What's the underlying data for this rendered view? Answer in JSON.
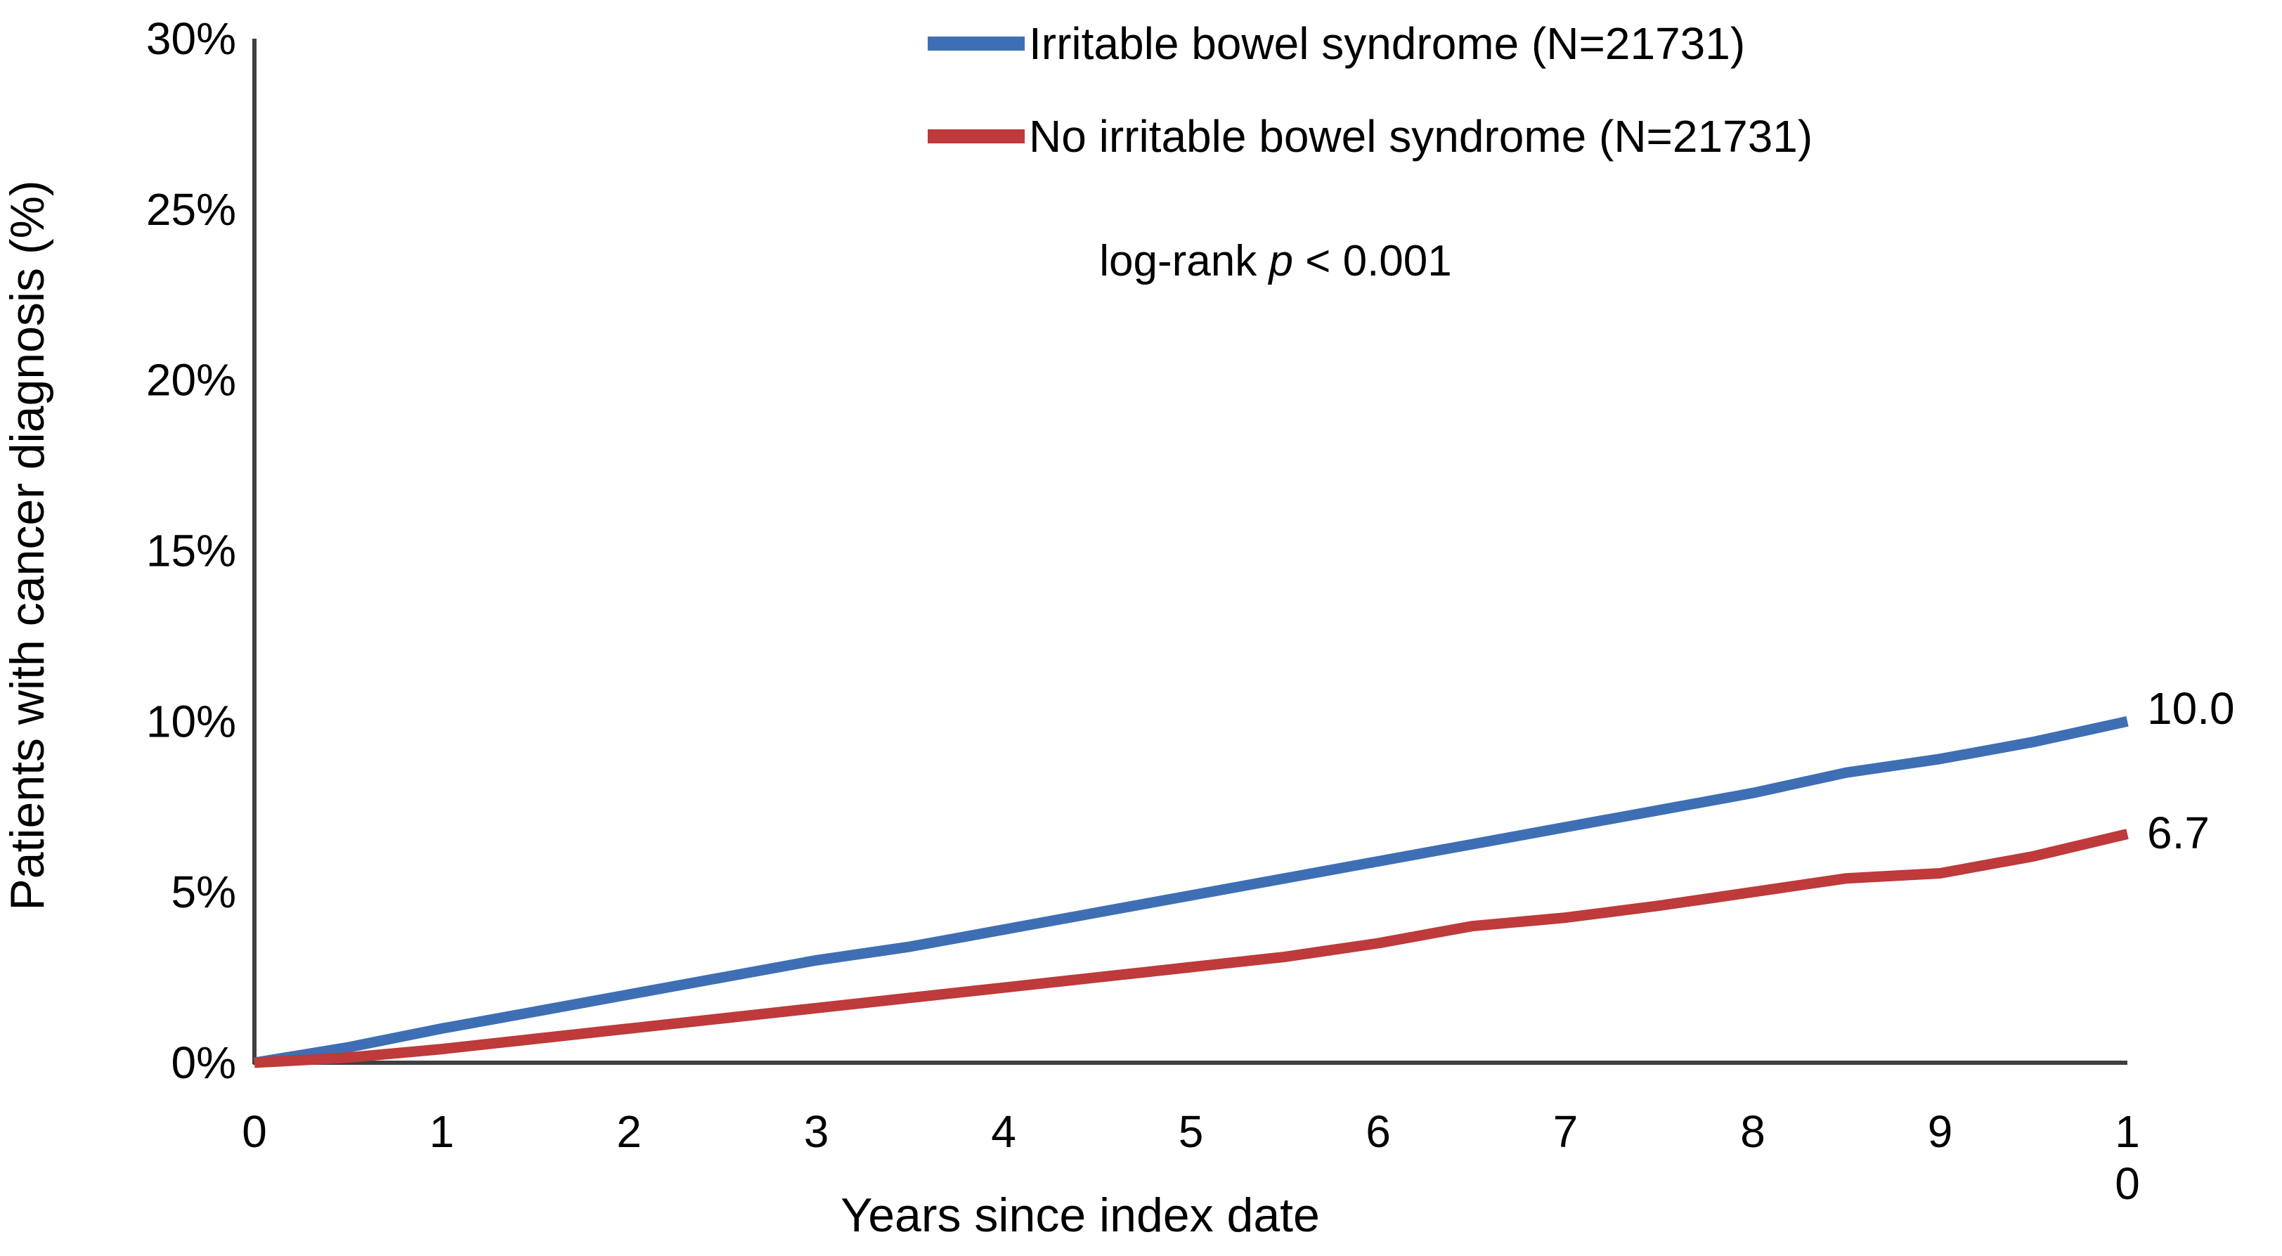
{
  "chart_data": {
    "type": "line",
    "title": "",
    "xlabel": "Years since index date",
    "ylabel": "Patients with cancer diagnosis (%)",
    "xlim": [
      0,
      10
    ],
    "ylim": [
      0,
      30
    ],
    "grid": false,
    "legend_position": "top-center",
    "x_ticks": [
      "0",
      "1",
      "2",
      "3",
      "4",
      "5",
      "6",
      "7",
      "8",
      "9",
      "10"
    ],
    "y_ticks": [
      "0%",
      "5%",
      "10%",
      "15%",
      "20%",
      "25%",
      "30%"
    ],
    "y_tick_values": [
      0,
      5,
      10,
      15,
      20,
      25,
      30
    ],
    "x": [
      0,
      0.5,
      1,
      1.5,
      2,
      2.5,
      3,
      3.5,
      4,
      4.5,
      5,
      5.5,
      6,
      6.5,
      7,
      7.5,
      8,
      8.5,
      9,
      9.5,
      10
    ],
    "series": [
      {
        "name": "Irritable bowel syndrome (N=21731)",
        "color": "#3E6FB4",
        "values": [
          0,
          0.45,
          1.0,
          1.5,
          2.0,
          2.5,
          3.0,
          3.4,
          3.9,
          4.4,
          4.9,
          5.4,
          5.9,
          6.4,
          6.9,
          7.4,
          7.9,
          8.5,
          8.9,
          9.4,
          10.0
        ],
        "end_label": "10.0",
        "final_value_pct": 10.0
      },
      {
        "name": "No irritable bowel syndrome (N=21731)",
        "color": "#BE3A3B",
        "values": [
          0,
          0.15,
          0.4,
          0.7,
          1.0,
          1.3,
          1.6,
          1.9,
          2.2,
          2.5,
          2.8,
          3.1,
          3.5,
          4.0,
          4.25,
          4.6,
          5.0,
          5.4,
          5.55,
          6.05,
          6.7
        ],
        "end_label": "6.7",
        "final_value_pct": 6.7
      }
    ],
    "annotation": {
      "prefix": "log-rank ",
      "stat": "p",
      "suffix": " < 0.001"
    }
  },
  "colors": {
    "axis": "#404040",
    "text": "#000000",
    "background": "#ffffff"
  }
}
